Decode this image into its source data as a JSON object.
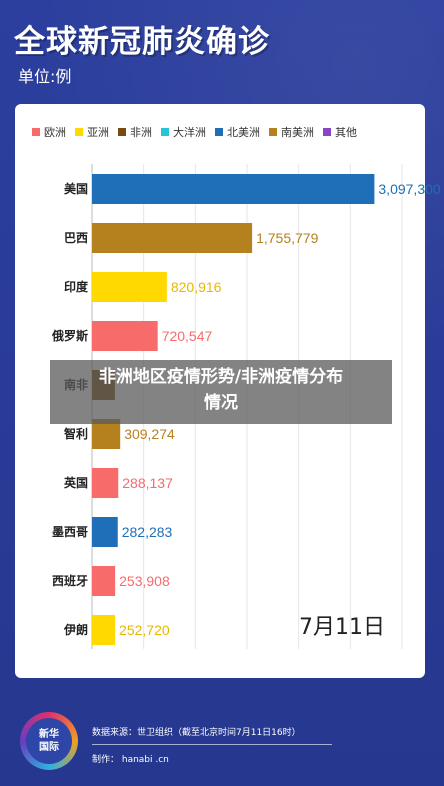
{
  "header": {
    "title": "全球新冠肺炎确诊",
    "unit": "单位:例"
  },
  "legend": [
    {
      "label": "欧洲",
      "color": "#f76b6b"
    },
    {
      "label": "亚洲",
      "color": "#ffd900"
    },
    {
      "label": "非洲",
      "color": "#7a4a0e"
    },
    {
      "label": "大洋洲",
      "color": "#27c4d4"
    },
    {
      "label": "北美洲",
      "color": "#1e6fb8"
    },
    {
      "label": "南美洲",
      "color": "#b5811f"
    },
    {
      "label": "其他",
      "color": "#8a44c8"
    }
  ],
  "chart_data": {
    "type": "bar",
    "orientation": "horizontal",
    "categories": [
      "美国",
      "巴西",
      "印度",
      "俄罗斯",
      "南非",
      "智利",
      "英国",
      "墨西哥",
      "西班牙",
      "伊朗"
    ],
    "values": [
      3097300,
      1755779,
      820916,
      720547,
      250687,
      309274,
      288137,
      282283,
      253908,
      252720
    ],
    "value_labels": [
      "3,097,300",
      "1,755,779",
      "820,916",
      "720,547",
      "",
      "309,274",
      "288,137",
      "282,283",
      "253,908",
      "252,720"
    ],
    "regions": [
      "北美洲",
      "南美洲",
      "亚洲",
      "欧洲",
      "非洲",
      "南美洲",
      "欧洲",
      "北美洲",
      "欧洲",
      "亚洲"
    ],
    "xlim": [
      0,
      3400000
    ],
    "grid": true,
    "legend_position": "top"
  },
  "date_label": "7月11日",
  "overlay": {
    "line1": "非洲地区疫情形势/非洲疫情分布",
    "line2": "情况"
  },
  "footer": {
    "logo_line1": "新华",
    "logo_line2": "国际",
    "source": "数据来源：世卫组织（截至北京时间7月11日16时）",
    "maker": "制作：  hanabi .cn"
  }
}
